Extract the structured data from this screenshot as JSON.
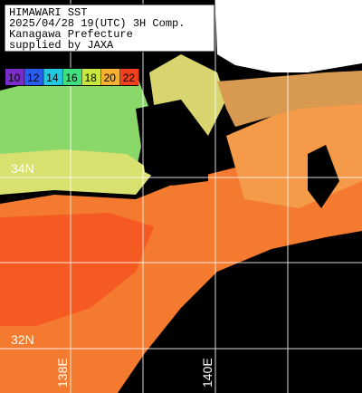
{
  "header": {
    "title": "HIMAWARI SST",
    "datetime": "2025/04/28 19(UTC) 3H Comp.",
    "region": "Kanagawa Prefecture",
    "credit": "supplied by JAXA"
  },
  "legend": {
    "labels": [
      "10",
      "12",
      "14",
      "16",
      "18",
      "20",
      "22"
    ],
    "colors": [
      "#7a2cc8",
      "#2a5cf0",
      "#20c8e0",
      "#40e080",
      "#c8e840",
      "#f8b030",
      "#f04020"
    ]
  },
  "grid": {
    "lat_labels": [
      "34N",
      "32N"
    ],
    "lon_labels": [
      "138E",
      "140E"
    ]
  }
}
